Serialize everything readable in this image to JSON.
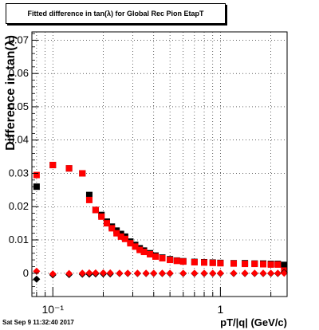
{
  "title": "Fitted difference in tan(λ) for Global Rec Pion EtapT",
  "datestamp": "Sat Sep  9 11:32:40 2017",
  "chart_data": {
    "type": "scatter",
    "title": "Fitted difference in tan(λ) for Global Rec Pion EtapT",
    "xlabel": "pT/|q| (GeV/c)",
    "ylabel": "Difference in tan(λ)",
    "xscale": "log",
    "xlim": [
      0.075,
      2.5
    ],
    "ylim": [
      -0.007,
      0.0725
    ],
    "grid": true,
    "yticks": [
      0,
      0.01,
      0.02,
      0.03,
      0.04,
      0.05,
      0.06,
      0.07
    ],
    "ytick_labels": [
      "0",
      "0.01",
      "0.02",
      "0.03",
      "0.04",
      "0.05",
      "0.06",
      "0.07"
    ],
    "xticks": [
      0.1,
      1
    ],
    "xtick_labels": [
      "10⁻¹",
      "1"
    ],
    "series": [
      {
        "name": "",
        "color": "#000000",
        "marker": "square",
        "x": [
          0.08,
          0.1,
          0.125,
          0.15,
          0.165,
          0.18,
          0.195,
          0.21,
          0.225,
          0.24,
          0.255,
          0.27,
          0.29,
          0.31,
          0.33,
          0.35,
          0.38,
          0.41,
          0.45,
          0.5,
          0.55,
          0.6,
          0.7,
          0.8,
          0.9,
          1.0,
          1.2,
          1.4,
          1.6,
          1.8,
          2.0,
          2.2,
          2.4
        ],
        "y": [
          0.026,
          0.0325,
          0.0315,
          0.03,
          0.0235,
          0.019,
          0.0175,
          0.0155,
          0.014,
          0.0128,
          0.0118,
          0.011,
          0.0095,
          0.0085,
          0.0075,
          0.0068,
          0.006,
          0.0053,
          0.0047,
          0.0042,
          0.0038,
          0.0036,
          0.0034,
          0.0033,
          0.0032,
          0.0031,
          0.003,
          0.003,
          0.0029,
          0.0029,
          0.0028,
          0.0028,
          0.0025
        ]
      },
      {
        "name": "",
        "color": "#ff0000",
        "marker": "square",
        "x": [
          0.08,
          0.1,
          0.125,
          0.15,
          0.165,
          0.18,
          0.195,
          0.21,
          0.225,
          0.24,
          0.255,
          0.27,
          0.29,
          0.31,
          0.33,
          0.35,
          0.38,
          0.41,
          0.45,
          0.5,
          0.55,
          0.6,
          0.7,
          0.8,
          0.9,
          1.0,
          1.2,
          1.4,
          1.6,
          1.8,
          2.0,
          2.2,
          2.4
        ],
        "y": [
          0.0295,
          0.0325,
          0.0315,
          0.03,
          0.022,
          0.019,
          0.017,
          0.015,
          0.0135,
          0.012,
          0.011,
          0.0103,
          0.009,
          0.008,
          0.007,
          0.0064,
          0.0057,
          0.005,
          0.0045,
          0.004,
          0.0037,
          0.0035,
          0.0033,
          0.0032,
          0.0031,
          0.003,
          0.0029,
          0.0028,
          0.0028,
          0.0027,
          0.0026,
          0.0026,
          0.0008
        ]
      },
      {
        "name": "",
        "color": "#000000",
        "marker": "diamond",
        "x": [
          0.08,
          0.1,
          0.125,
          0.15,
          0.165,
          0.18,
          0.2,
          0.22,
          0.25,
          0.28,
          0.32,
          0.36,
          0.4,
          0.45,
          0.5,
          0.6,
          0.7,
          0.8,
          0.9,
          1.0,
          1.2,
          1.4,
          1.6,
          1.8,
          2.0,
          2.2,
          2.4
        ],
        "y": [
          -0.0018,
          -0.0005,
          -0.0004,
          -0.0003,
          -0.0003,
          -0.0002,
          -0.0002,
          -0.0002,
          -0.0001,
          -0.0001,
          -0.0001,
          -0.0001,
          -0.0001,
          -0.0001,
          -0.0001,
          -0.0001,
          -0.0001,
          -0.0001,
          -0.0001,
          -0.0001,
          -0.0001,
          -0.0001,
          -0.0001,
          -0.0001,
          -0.0001,
          -0.0001,
          0.0002
        ]
      },
      {
        "name": "",
        "color": "#ff0000",
        "marker": "diamond",
        "x": [
          0.08,
          0.1,
          0.125,
          0.15,
          0.165,
          0.18,
          0.2,
          0.22,
          0.25,
          0.28,
          0.32,
          0.36,
          0.4,
          0.45,
          0.5,
          0.6,
          0.7,
          0.8,
          0.9,
          1.0,
          1.2,
          1.4,
          1.6,
          1.8,
          2.0,
          2.2,
          2.4
        ],
        "y": [
          0.0006,
          -0.0002,
          -0.0001,
          0.0,
          0.0001,
          0.0001,
          0.0001,
          0.0001,
          0.0,
          0.0,
          0.0,
          0.0,
          0.0,
          0.0,
          0.0,
          0.0,
          0.0,
          0.0,
          0.0,
          0.0,
          0.0,
          0.0,
          0.0,
          0.0,
          0.0,
          0.0,
          0.0
        ]
      }
    ]
  }
}
